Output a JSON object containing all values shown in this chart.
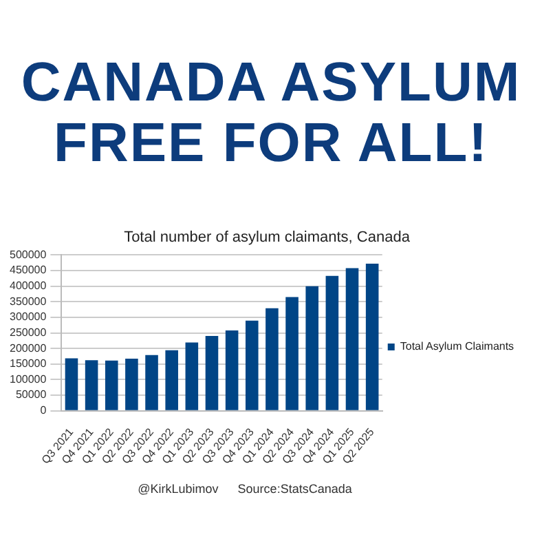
{
  "chart_data": {
    "type": "bar",
    "title": "CANADA ASYLUM FREE FOR ALL!",
    "subtitle": "Total number of asylum claimants, Canada",
    "categories": [
      "Q3 2021",
      "Q4 2021",
      "Q1 2022",
      "Q2 2022",
      "Q3 2022",
      "Q4 2022",
      "Q1 2023",
      "Q2 2023",
      "Q3 2023",
      "Q4 2023",
      "Q1 2024",
      "Q2 2024",
      "Q3 2024",
      "Q4 2024",
      "Q1 2025",
      "Q2 2025"
    ],
    "series": [
      {
        "name": "Total Asylum Claimants",
        "color": "#004586",
        "values": [
          168000,
          162000,
          161000,
          167000,
          179000,
          194000,
          219000,
          240000,
          258000,
          289000,
          329000,
          365000,
          400000,
          433000,
          458000,
          472000
        ]
      }
    ],
    "ylim": [
      0,
      500000
    ],
    "yticks": [
      0,
      50000,
      100000,
      150000,
      200000,
      250000,
      300000,
      350000,
      400000,
      450000,
      500000
    ],
    "grid": "y",
    "legend": "right",
    "annotations": [
      "@KirkLubimov",
      "Source:StatsCanada"
    ]
  }
}
